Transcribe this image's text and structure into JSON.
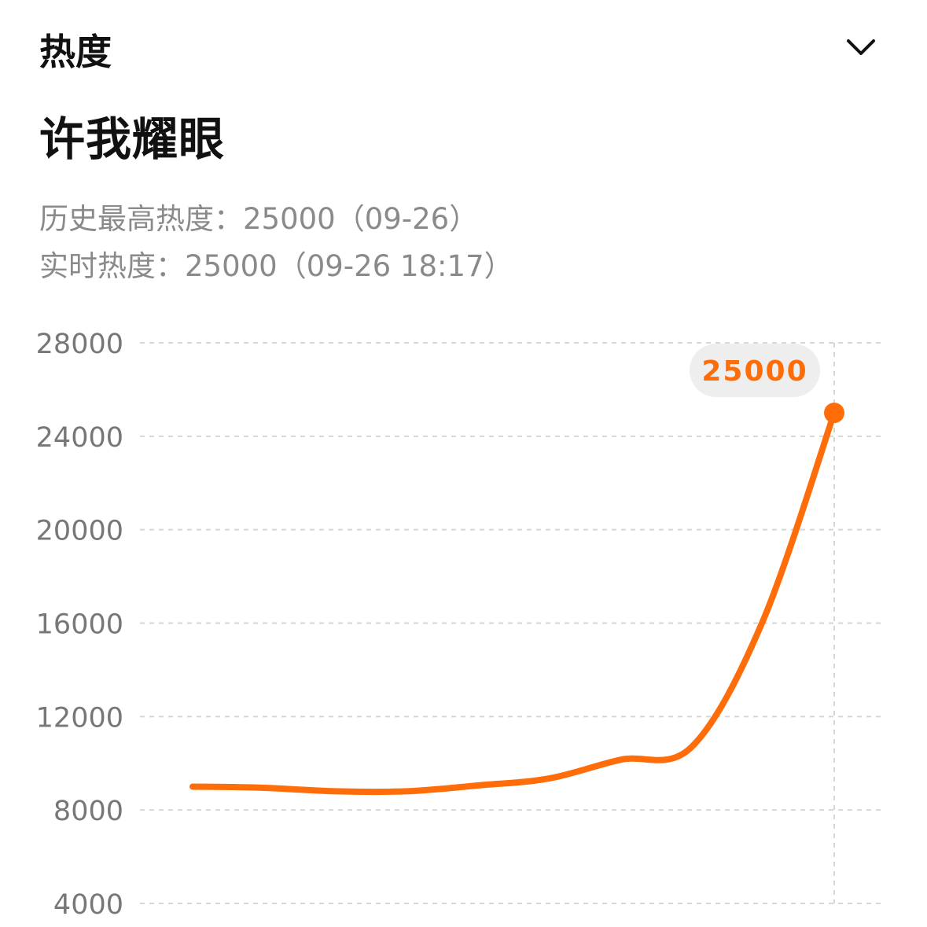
{
  "header": {
    "section_title": "热度",
    "collapse_icon": "chevron-down-icon"
  },
  "topic": {
    "title": "许我耀眼"
  },
  "stats": {
    "peak_label": "历史最高热度：",
    "peak_value": "25000",
    "peak_date": "（09-26）",
    "realtime_label": "实时热度：",
    "realtime_value": "25000",
    "realtime_time": "（09-26 18:17）"
  },
  "colors": {
    "accent": "#ff6d0a",
    "grid": "#d6d6d6",
    "axis_text": "#777777",
    "tooltip_bg": "#eeeeee"
  },
  "chart_data": {
    "type": "line",
    "ylim": [
      4000,
      28000
    ],
    "yticks": [
      "28000",
      "24000",
      "20000",
      "16000",
      "12000",
      "8000",
      "4000"
    ],
    "series": [
      {
        "values": [
          9000,
          8950,
          8800,
          8800,
          9050,
          9350,
          10150,
          10700,
          16100,
          25000
        ]
      }
    ],
    "highlight": {
      "index": 9,
      "label": "25000"
    }
  }
}
